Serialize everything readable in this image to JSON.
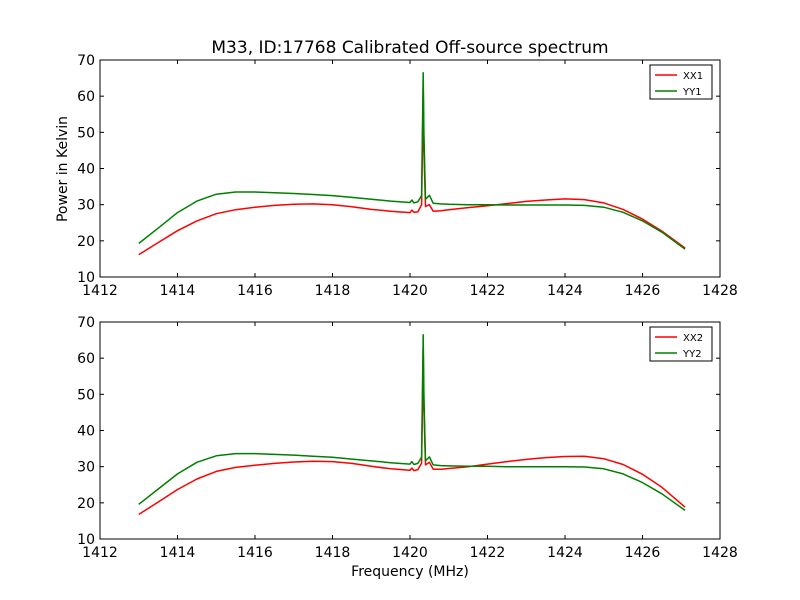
{
  "chart_data": {
    "type": "line",
    "title": "M33, ID:17768 Calibrated Off-source spectrum",
    "xlabel": "Frequency (MHz)",
    "ylabel": "Power in Kelvin",
    "panels": [
      {
        "xlim": [
          1412,
          1428
        ],
        "ylim": [
          10,
          70
        ],
        "xticks": [
          "1412",
          "1414",
          "1416",
          "1418",
          "1420",
          "1422",
          "1424",
          "1426",
          "1428"
        ],
        "yticks": [
          "10",
          "20",
          "30",
          "40",
          "50",
          "60",
          "70"
        ],
        "legend_position": "top-right",
        "series": [
          {
            "name": "XX1",
            "color": "#ff0000",
            "x": [
              1413.0,
              1413.5,
              1414.0,
              1414.5,
              1415.0,
              1415.5,
              1416.0,
              1416.5,
              1417.0,
              1417.5,
              1418.0,
              1418.5,
              1419.0,
              1419.5,
              1420.0,
              1420.05,
              1420.1,
              1420.2,
              1420.3,
              1420.32,
              1420.34,
              1420.36,
              1420.4,
              1420.5,
              1420.6,
              1420.8,
              1421.0,
              1421.5,
              1422.0,
              1422.5,
              1423.0,
              1423.5,
              1424.0,
              1424.5,
              1425.0,
              1425.5,
              1426.0,
              1426.5,
              1427.1
            ],
            "values": [
              16.2,
              19.5,
              22.8,
              25.5,
              27.5,
              28.6,
              29.3,
              29.8,
              30.1,
              30.2,
              30.0,
              29.4,
              28.7,
              28.2,
              27.8,
              28.5,
              27.9,
              28.0,
              30.0,
              45.0,
              62.0,
              45.0,
              29.5,
              30.0,
              28.2,
              28.3,
              28.6,
              29.2,
              29.7,
              30.3,
              30.9,
              31.3,
              31.6,
              31.4,
              30.5,
              28.7,
              26.0,
              22.7,
              18.0
            ]
          },
          {
            "name": "YY1",
            "color": "#008000",
            "x": [
              1413.0,
              1413.5,
              1414.0,
              1414.5,
              1415.0,
              1415.5,
              1416.0,
              1416.5,
              1417.0,
              1417.5,
              1418.0,
              1418.5,
              1419.0,
              1419.5,
              1420.0,
              1420.05,
              1420.1,
              1420.2,
              1420.3,
              1420.32,
              1420.34,
              1420.36,
              1420.4,
              1420.5,
              1420.6,
              1420.8,
              1421.0,
              1421.5,
              1422.0,
              1422.5,
              1423.0,
              1423.5,
              1424.0,
              1424.5,
              1425.0,
              1425.5,
              1426.0,
              1426.5,
              1427.1
            ],
            "values": [
              19.3,
              23.5,
              27.8,
              31.0,
              32.9,
              33.5,
              33.5,
              33.3,
              33.1,
              32.8,
              32.5,
              32.0,
              31.5,
              31.0,
              30.6,
              31.3,
              30.5,
              30.8,
              32.5,
              50.0,
              66.5,
              50.0,
              31.5,
              32.6,
              30.4,
              30.2,
              30.1,
              30.0,
              30.0,
              29.9,
              29.9,
              29.9,
              29.9,
              29.8,
              29.3,
              27.9,
              25.5,
              22.4,
              17.7
            ]
          }
        ]
      },
      {
        "xlim": [
          1412,
          1428
        ],
        "ylim": [
          10,
          70
        ],
        "xticks": [
          "1412",
          "1414",
          "1416",
          "1418",
          "1420",
          "1422",
          "1424",
          "1426",
          "1428"
        ],
        "yticks": [
          "10",
          "20",
          "30",
          "40",
          "50",
          "60",
          "70"
        ],
        "legend_position": "top-right",
        "series": [
          {
            "name": "XX2",
            "color": "#ff0000",
            "x": [
              1413.0,
              1413.5,
              1414.0,
              1414.5,
              1415.0,
              1415.5,
              1416.0,
              1416.5,
              1417.0,
              1417.5,
              1418.0,
              1418.5,
              1419.0,
              1419.5,
              1420.0,
              1420.05,
              1420.1,
              1420.2,
              1420.3,
              1420.32,
              1420.34,
              1420.36,
              1420.4,
              1420.5,
              1420.6,
              1420.8,
              1421.0,
              1421.5,
              1422.0,
              1422.5,
              1423.0,
              1423.5,
              1424.0,
              1424.5,
              1425.0,
              1425.5,
              1426.0,
              1426.5,
              1427.1
            ],
            "values": [
              16.8,
              20.2,
              23.7,
              26.6,
              28.7,
              29.8,
              30.4,
              30.9,
              31.3,
              31.5,
              31.4,
              30.9,
              30.1,
              29.4,
              29.0,
              29.6,
              28.9,
              29.2,
              31.0,
              46.0,
              63.0,
              46.0,
              30.5,
              31.2,
              29.3,
              29.3,
              29.5,
              30.0,
              30.7,
              31.4,
              32.0,
              32.5,
              32.8,
              32.9,
              32.2,
              30.6,
              27.9,
              24.3,
              18.8
            ]
          },
          {
            "name": "YY2",
            "color": "#008000",
            "x": [
              1413.0,
              1413.5,
              1414.0,
              1414.5,
              1415.0,
              1415.5,
              1416.0,
              1416.5,
              1417.0,
              1417.5,
              1418.0,
              1418.5,
              1419.0,
              1419.5,
              1420.0,
              1420.05,
              1420.1,
              1420.2,
              1420.3,
              1420.32,
              1420.34,
              1420.36,
              1420.4,
              1420.5,
              1420.6,
              1420.8,
              1421.0,
              1421.5,
              1422.0,
              1422.5,
              1423.0,
              1423.5,
              1424.0,
              1424.5,
              1425.0,
              1425.5,
              1426.0,
              1426.5,
              1427.1
            ],
            "values": [
              19.6,
              23.8,
              28.0,
              31.2,
              33.0,
              33.6,
              33.6,
              33.4,
              33.2,
              32.9,
              32.6,
              32.1,
              31.6,
              31.1,
              30.7,
              31.4,
              30.6,
              30.9,
              32.6,
              50.0,
              66.5,
              50.0,
              31.6,
              32.7,
              30.5,
              30.3,
              30.2,
              30.1,
              30.1,
              30.0,
              30.0,
              30.0,
              30.0,
              29.9,
              29.4,
              28.0,
              25.6,
              22.5,
              17.9
            ]
          }
        ]
      }
    ]
  }
}
